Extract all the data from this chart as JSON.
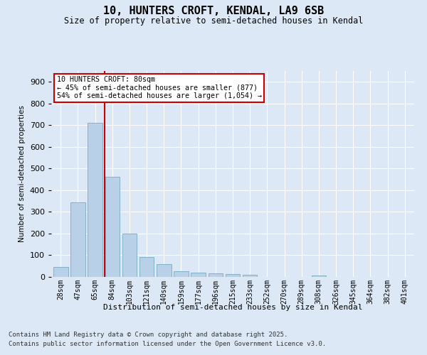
{
  "title": "10, HUNTERS CROFT, KENDAL, LA9 6SB",
  "subtitle": "Size of property relative to semi-detached houses in Kendal",
  "xlabel": "Distribution of semi-detached houses by size in Kendal",
  "ylabel": "Number of semi-detached properties",
  "bar_labels": [
    "28sqm",
    "47sqm",
    "65sqm",
    "84sqm",
    "103sqm",
    "121sqm",
    "140sqm",
    "159sqm",
    "177sqm",
    "196sqm",
    "215sqm",
    "233sqm",
    "252sqm",
    "270sqm",
    "289sqm",
    "308sqm",
    "326sqm",
    "345sqm",
    "364sqm",
    "382sqm",
    "401sqm"
  ],
  "bar_values": [
    47,
    345,
    710,
    463,
    200,
    93,
    60,
    27,
    20,
    15,
    12,
    10,
    0,
    0,
    0,
    5,
    0,
    0,
    0,
    0,
    0
  ],
  "bar_color": "#b8d0e8",
  "bar_edge_color": "#7aaabf",
  "vline_color": "#cc0000",
  "ylim": [
    0,
    950
  ],
  "yticks": [
    0,
    100,
    200,
    300,
    400,
    500,
    600,
    700,
    800,
    900
  ],
  "annotation_title": "10 HUNTERS CROFT: 80sqm",
  "annotation_line2": "← 45% of semi-detached houses are smaller (877)",
  "annotation_line3": "54% of semi-detached houses are larger (1,054) →",
  "annotation_box_color": "#cc0000",
  "bg_color": "#dce8f5",
  "fig_bg_color": "#dce8f5",
  "grid_color": "#ffffff",
  "footer_line1": "Contains HM Land Registry data © Crown copyright and database right 2025.",
  "footer_line2": "Contains public sector information licensed under the Open Government Licence v3.0."
}
